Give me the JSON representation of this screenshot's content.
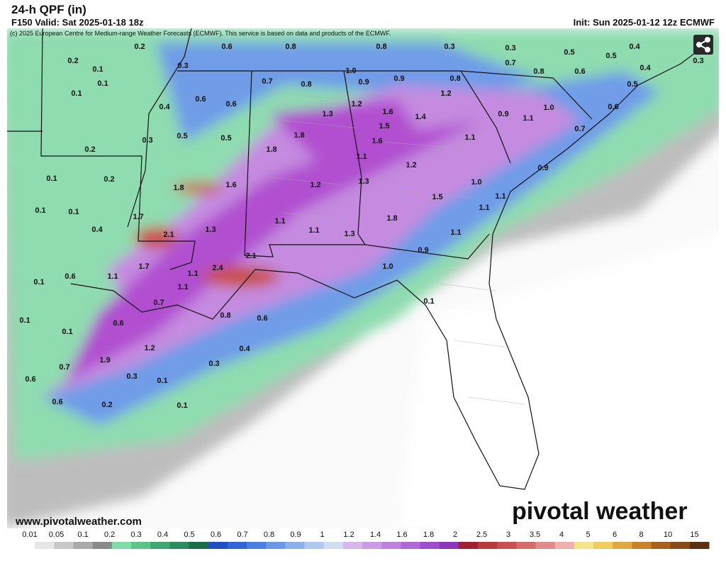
{
  "header": {
    "title": "24-h QPF (in)",
    "valid": "F150 Valid: Sat 2025-01-18 18z",
    "init": "Init: Sun 2025-01-12 12z ECMWF",
    "copyright": "(c) 2025 European Centre for Medium-range Weather Forecasts (ECMWF). This service is based on data and products of the ECMWF."
  },
  "map": {
    "labels": [
      "0.2",
      "0.6",
      "0.8",
      "0.8",
      "0.3",
      "0.3",
      "0.5",
      "0.5",
      "0.4",
      "0.2",
      "0.3",
      "0.1",
      "0.7",
      "0.8",
      "0.6",
      "0.4",
      "0.3",
      "1.0",
      "0.9",
      "0.8",
      "0.7",
      "0.8",
      "0.9",
      "0.1",
      "0.5",
      "0.1",
      "1.2",
      "0.6",
      "0.4",
      "0.6",
      "1.2",
      "1.6",
      "0.6",
      "1.3",
      "1.4",
      "0.9",
      "1.1",
      "1.0",
      "1.5",
      "0.7",
      "0.5",
      "0.5",
      "1.8",
      "1.1",
      "0.3",
      "1.6",
      "0.2",
      "1.8",
      "1.1",
      "1.2",
      "0.9",
      "0.1",
      "0.2",
      "1.3",
      "1.2",
      "1.0",
      "1.8",
      "1.6",
      "1.5",
      "1.1",
      "0.1",
      "0.1",
      "1.1",
      "1.7",
      "1.8",
      "0.4",
      "1.1",
      "1.3",
      "1.1",
      "1.3",
      "1.1",
      "2.1",
      "0.9",
      "2.1",
      "1.7",
      "2.4",
      "1.0",
      "0.6",
      "1.1",
      "1.1",
      "0.1",
      "1.1",
      "0.7",
      "0.1",
      "0.8",
      "0.6",
      "0.1",
      "0.6",
      "0.1",
      "0.4",
      "1.2",
      "1.9",
      "0.3",
      "0.7",
      "0.3",
      "0.1",
      "0.6",
      "0.6",
      "0.2",
      "0.1"
    ],
    "source": "www.pivotalweather.com",
    "logo": "pivotal weather"
  },
  "colorbar": {
    "labels": [
      "0.01",
      "0.05",
      "0.1",
      "0.2",
      "0.3",
      "0.4",
      "0.5",
      "0.6",
      "0.7",
      "0.8",
      "0.9",
      "1",
      "1.2",
      "1.4",
      "1.6",
      "1.8",
      "2",
      "2.5",
      "3",
      "3.5",
      "4",
      "5",
      "6",
      "8",
      "10",
      "15"
    ]
  }
}
